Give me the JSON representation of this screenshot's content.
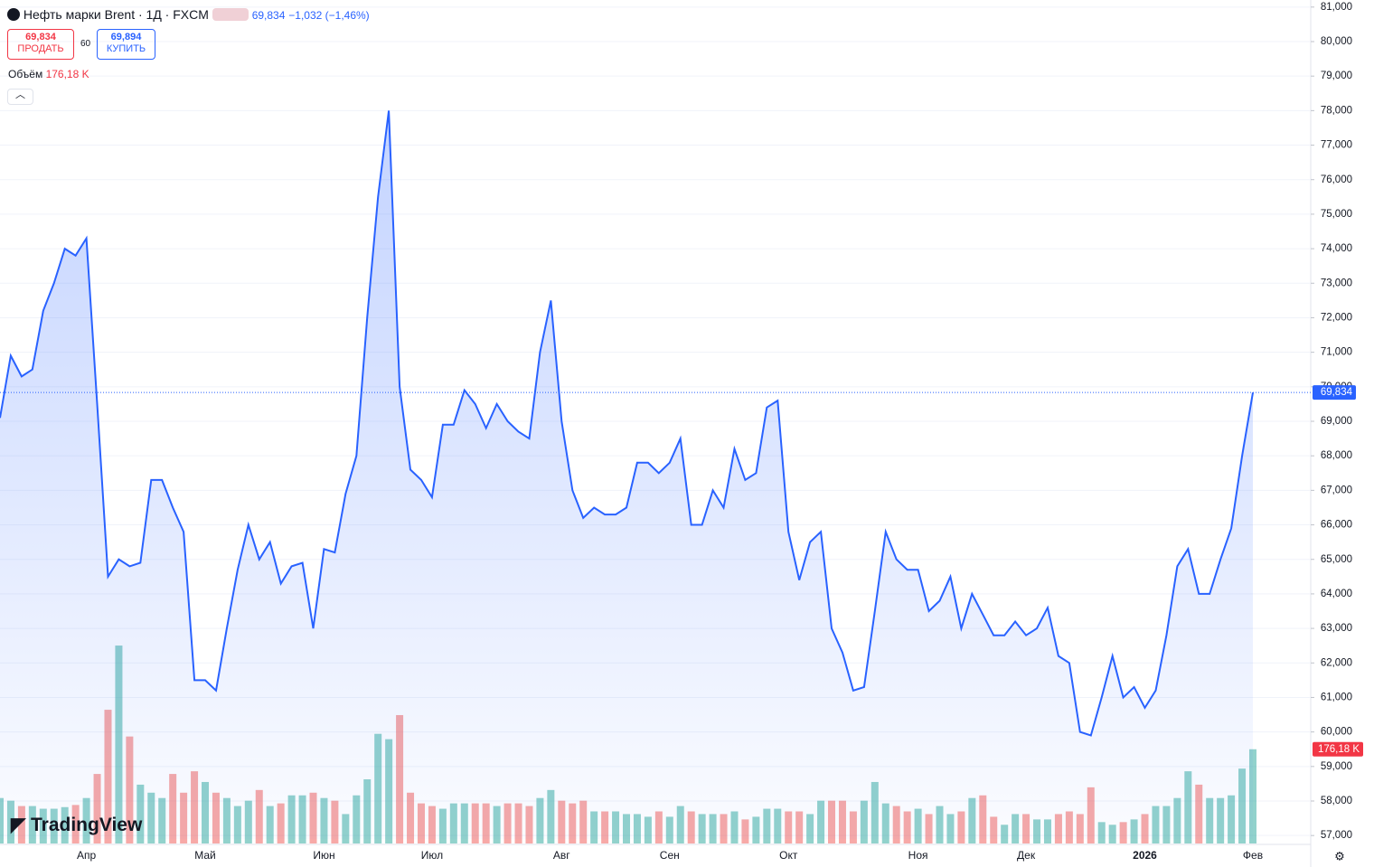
{
  "header": {
    "symbol": "Нефть марки Brent · 1Д · FXCM",
    "last": "69,834",
    "change": "−1,032 (−1,46%)",
    "sell_price": "69,834",
    "sell_label": "ПРОДАТЬ",
    "spread": "60",
    "buy_price": "69,894",
    "buy_label": "КУПИТЬ",
    "volume_title": "Объём",
    "volume_value": "176,18 K",
    "logo": "TradingView"
  },
  "chart_data": {
    "type": "area",
    "color": "#2962ff",
    "categories": [
      null,
      null,
      null,
      null,
      null,
      null,
      null,
      null,
      "Апр",
      null,
      null,
      null,
      null,
      null,
      null,
      null,
      null,
      null,
      null,
      "Май",
      null,
      null,
      null,
      null,
      null,
      null,
      null,
      null,
      null,
      null,
      "Июн",
      null,
      null,
      null,
      null,
      null,
      null,
      null,
      null,
      null,
      "Июл",
      null,
      null,
      null,
      null,
      null,
      null,
      null,
      null,
      null,
      null,
      null,
      "Авг",
      null,
      null,
      null,
      null,
      null,
      null,
      null,
      null,
      null,
      "Сен",
      null,
      null,
      null,
      null,
      null,
      null,
      null,
      null,
      null,
      null,
      "Окт",
      null,
      null,
      null,
      null,
      null,
      null,
      null,
      null,
      null,
      null,
      null,
      "Ноя",
      null,
      null,
      null,
      null,
      null,
      null,
      null,
      null,
      null,
      "Дек",
      null,
      null,
      null,
      null,
      null,
      null,
      null,
      null,
      null,
      null,
      "2026",
      null,
      null,
      null,
      null,
      null,
      null,
      null,
      null,
      null,
      "Фев"
    ],
    "values": [
      69.1,
      70.9,
      70.3,
      70.5,
      72.2,
      73.0,
      74.0,
      73.8,
      74.3,
      69.5,
      64.5,
      65.0,
      64.8,
      64.9,
      67.3,
      67.3,
      66.5,
      65.8,
      61.5,
      61.5,
      61.2,
      63.0,
      64.7,
      66.0,
      65.0,
      65.5,
      64.3,
      64.8,
      64.9,
      63.0,
      65.3,
      65.2,
      66.9,
      68.0,
      72.0,
      75.5,
      78.0,
      70.0,
      67.6,
      67.3,
      66.8,
      68.9,
      68.9,
      69.9,
      69.5,
      68.8,
      69.5,
      69.0,
      68.7,
      68.5,
      71.0,
      72.5,
      69.0,
      67.0,
      66.2,
      66.5,
      66.3,
      66.3,
      66.5,
      67.8,
      67.8,
      67.5,
      67.8,
      68.5,
      66.0,
      66.0,
      67.0,
      66.5,
      68.2,
      67.3,
      67.5,
      69.4,
      69.6,
      65.8,
      64.4,
      65.5,
      65.8,
      63.0,
      62.3,
      61.2,
      61.3,
      63.5,
      65.8,
      65.0,
      64.7,
      64.7,
      63.5,
      63.8,
      64.5,
      63.0,
      64.0,
      63.4,
      62.8,
      62.8,
      63.2,
      62.8,
      63.0,
      63.6,
      62.2,
      62.0,
      60.0,
      59.9,
      61.0,
      62.2,
      61.0,
      61.3,
      60.7,
      61.2,
      62.8,
      64.8,
      65.3,
      64.0,
      64.0,
      65.0,
      65.9,
      68.0,
      69.834
    ],
    "last_label": "69,834",
    "ylim": [
      56.9,
      81.1
    ],
    "yticks": [
      {
        "value": 57,
        "label": "57,000"
      },
      {
        "value": 58,
        "label": "58,000"
      },
      {
        "value": 59,
        "label": "59,000"
      },
      {
        "value": 60,
        "label": "60,000"
      },
      {
        "value": 61,
        "label": "61,000"
      },
      {
        "value": 62,
        "label": "62,000"
      },
      {
        "value": 63,
        "label": "63,000"
      },
      {
        "value": 64,
        "label": "64,000"
      },
      {
        "value": 65,
        "label": "65,000"
      },
      {
        "value": 66,
        "label": "66,000"
      },
      {
        "value": 67,
        "label": "67,000"
      },
      {
        "value": 68,
        "label": "68,000"
      },
      {
        "value": 69,
        "label": "69,000"
      },
      {
        "value": 70,
        "label": "70,000"
      },
      {
        "value": 71,
        "label": "71,000"
      },
      {
        "value": 72,
        "label": "72,000"
      },
      {
        "value": 73,
        "label": "73,000"
      },
      {
        "value": 74,
        "label": "74,000"
      },
      {
        "value": 75,
        "label": "75,000"
      },
      {
        "value": 76,
        "label": "76,000"
      },
      {
        "value": 77,
        "label": "77,000"
      },
      {
        "value": 78,
        "label": "78,000"
      },
      {
        "value": 79,
        "label": "79,000"
      },
      {
        "value": 80,
        "label": "80,000"
      },
      {
        "value": 81,
        "label": "81,000"
      }
    ],
    "grid": true,
    "series": [
      {
        "name": "Объём",
        "axis": "y2",
        "up_color": "rgba(38,166,154,0.5)",
        "down_color": "rgba(239,83,80,0.5)",
        "values": [
          85,
          80,
          70,
          70,
          65,
          65,
          68,
          72,
          85,
          130,
          250,
          370,
          200,
          110,
          95,
          85,
          130,
          95,
          135,
          115,
          95,
          85,
          70,
          80,
          100,
          70,
          75,
          90,
          90,
          95,
          85,
          80,
          55,
          90,
          120,
          205,
          195,
          240,
          95,
          75,
          70,
          65,
          75,
          75,
          75,
          75,
          70,
          75,
          75,
          70,
          85,
          100,
          80,
          75,
          80,
          60,
          60,
          60,
          55,
          55,
          50,
          60,
          50,
          70,
          60,
          55,
          55,
          55,
          60,
          45,
          50,
          65,
          65,
          60,
          60,
          55,
          80,
          80,
          80,
          60,
          80,
          115,
          75,
          70,
          60,
          65,
          55,
          70,
          55,
          60,
          85,
          90,
          50,
          35,
          55,
          55,
          45,
          45,
          55,
          60,
          55,
          105,
          40,
          35,
          40,
          45,
          55,
          70,
          70,
          85,
          135,
          110,
          85,
          85,
          90,
          140,
          176.18
        ],
        "last_label": "176,18 K"
      }
    ],
    "y2lim": [
      0,
      1570
    ]
  }
}
